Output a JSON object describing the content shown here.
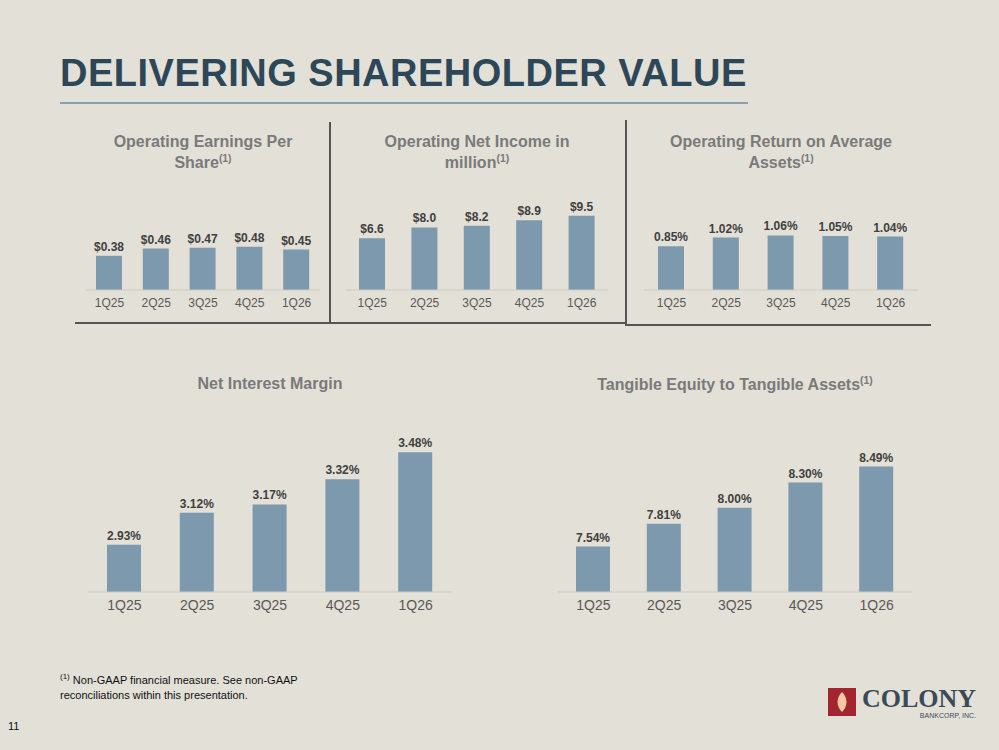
{
  "title": "DELIVERING SHAREHOLDER VALUE",
  "footnote": {
    "mark": "(1)",
    "text": "Non-GAAP financial measure. See non-GAAP reconciliations within this presentation."
  },
  "page": "11",
  "logo": {
    "name": "COLONY",
    "subtitle": "BANKCORP, INC."
  },
  "chart_data": [
    {
      "type": "bar",
      "title": "Operating Earnings Per Share",
      "annotation": "(1)",
      "categories": [
        "1Q25",
        "2Q25",
        "3Q25",
        "4Q25",
        "1Q26"
      ],
      "values": [
        0.38,
        0.46,
        0.47,
        0.48,
        0.45
      ],
      "value_labels": [
        "$0.38",
        "$0.46",
        "$0.47",
        "$0.48",
        "$0.45"
      ],
      "data_labels": true,
      "color": "#7d99ad",
      "ylim": [
        0,
        1.0
      ],
      "tick_labels": "x"
    },
    {
      "type": "bar",
      "title": "Operating Net Income in million",
      "annotation": "(1)",
      "categories": [
        "1Q25",
        "2Q25",
        "3Q25",
        "4Q25",
        "1Q26"
      ],
      "values": [
        6.6,
        8.0,
        8.2,
        8.9,
        9.5
      ],
      "value_labels": [
        "$6.6",
        "$8.0",
        "$8.2",
        "$8.9",
        "$9.5"
      ],
      "data_labels": true,
      "color": "#7d99ad",
      "ylim": [
        0,
        11.5
      ],
      "tick_labels": "x"
    },
    {
      "type": "bar",
      "title": "Operating Return on Average Assets",
      "annotation": "(1)",
      "categories": [
        "1Q25",
        "2Q25",
        "3Q25",
        "4Q25",
        "1Q26"
      ],
      "values": [
        0.85,
        1.02,
        1.06,
        1.05,
        1.04
      ],
      "value_labels": [
        "0.85%",
        "1.02%",
        "1.06%",
        "1.05%",
        "1.04%"
      ],
      "data_labels": true,
      "color": "#7d99ad",
      "ylim": [
        0,
        1.75
      ],
      "tick_labels": "x"
    },
    {
      "type": "bar",
      "title": "Net Interest Margin",
      "categories": [
        "1Q25",
        "2Q25",
        "3Q25",
        "4Q25",
        "1Q26"
      ],
      "values": [
        2.93,
        3.12,
        3.17,
        3.32,
        3.48
      ],
      "value_labels": [
        "2.93%",
        "3.12%",
        "3.17%",
        "3.32%",
        "3.48%"
      ],
      "data_labels": true,
      "color": "#7d99ad",
      "ylim": [
        2.65,
        3.6
      ],
      "tick_labels": "x"
    },
    {
      "type": "bar",
      "title": "Tangible Equity to Tangible Assets",
      "annotation": "(1)",
      "categories": [
        "1Q25",
        "2Q25",
        "3Q25",
        "4Q25",
        "1Q26"
      ],
      "values": [
        7.54,
        7.81,
        8.0,
        8.3,
        8.49
      ],
      "value_labels": [
        "7.54%",
        "7.81%",
        "8.00%",
        "8.30%",
        "8.49%"
      ],
      "data_labels": true,
      "color": "#7d99ad",
      "ylim": [
        7.0,
        8.9
      ],
      "tick_labels": "x"
    }
  ]
}
